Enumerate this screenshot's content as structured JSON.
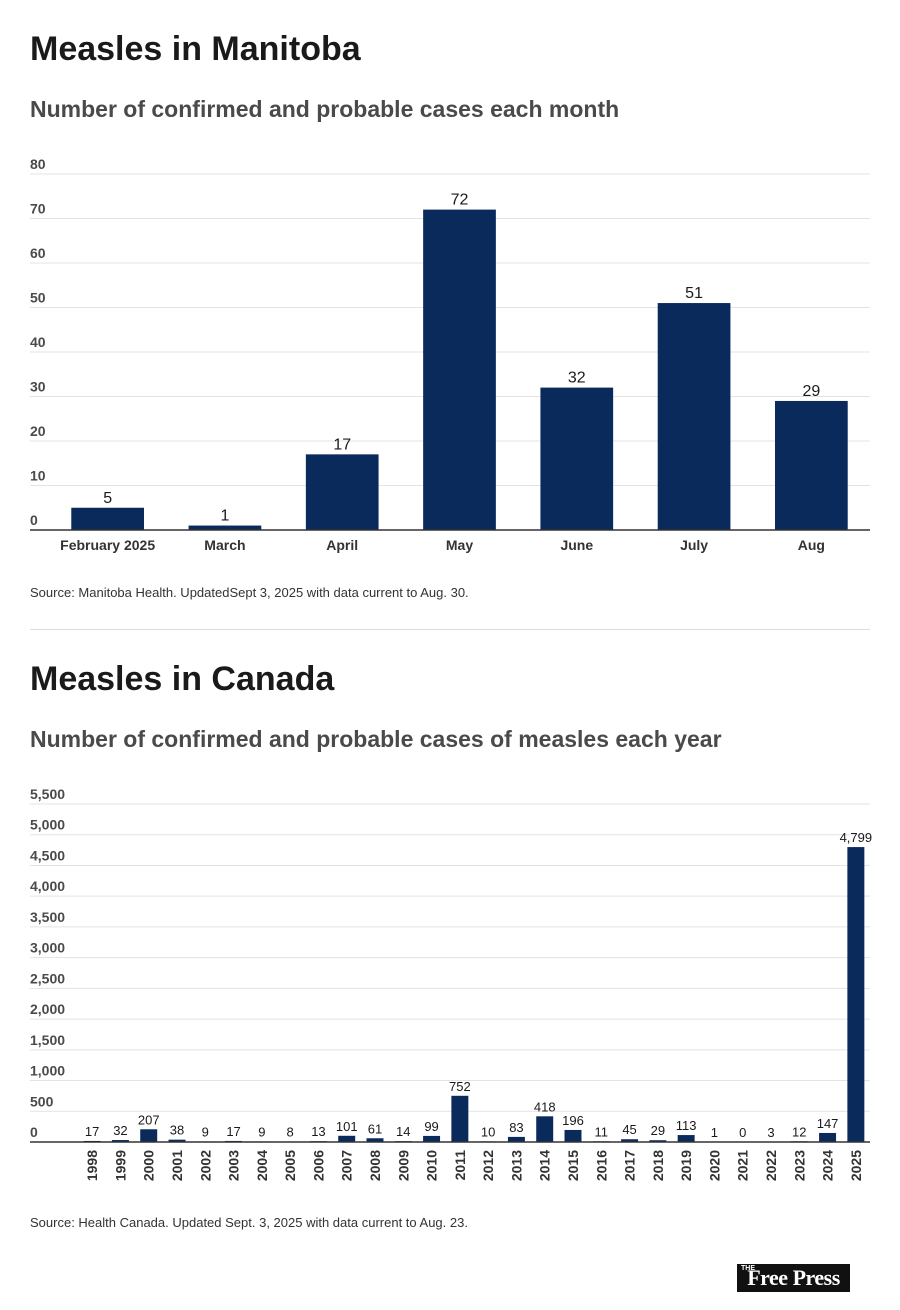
{
  "section1": {
    "title": "Measles in Manitoba",
    "subtitle": "Number of confirmed and probable cases each month",
    "source": "Source: Manitoba Health. UpdatedSept 3, 2025 with data current to Aug. 30."
  },
  "section2": {
    "title": "Measles in Canada",
    "subtitle": "Number of confirmed and probable cases of measles each year",
    "source": "Source: Health Canada. Updated Sept. 3, 2025 with data current to Aug. 23."
  },
  "logo": {
    "small": "THE",
    "text": "Free Press"
  },
  "colors": {
    "bar": "#0b2a5c",
    "grid": "#e3e3e3",
    "axis": "#333333"
  },
  "chart_data": [
    {
      "type": "bar",
      "title": "Measles in Manitoba",
      "subtitle": "Number of confirmed and probable cases each month",
      "categories": [
        "February 2025",
        "March",
        "April",
        "May",
        "June",
        "July",
        "Aug"
      ],
      "values": [
        5,
        1,
        17,
        72,
        32,
        51,
        29
      ],
      "value_labels": [
        "5",
        "1",
        "17",
        "72",
        "32",
        "51",
        "29"
      ],
      "ylim": [
        0,
        80
      ],
      "yticks": [
        0,
        10,
        20,
        30,
        40,
        50,
        60,
        70,
        80
      ],
      "ytick_labels": [
        "0",
        "10",
        "20",
        "30",
        "40",
        "50",
        "60",
        "70",
        "80"
      ],
      "xlabel": "",
      "ylabel": "",
      "grid": true
    },
    {
      "type": "bar",
      "title": "Measles in Canada",
      "subtitle": "Number of confirmed and probable cases of measles each year",
      "categories": [
        "1998",
        "1999",
        "2000",
        "2001",
        "2002",
        "2003",
        "2004",
        "2005",
        "2006",
        "2007",
        "2008",
        "2009",
        "2010",
        "2011",
        "2012",
        "2013",
        "2014",
        "2015",
        "2016",
        "2017",
        "2018",
        "2019",
        "2020",
        "2021",
        "2022",
        "2023",
        "2024",
        "2025"
      ],
      "values": [
        17,
        32,
        207,
        38,
        9,
        17,
        9,
        8,
        13,
        101,
        61,
        14,
        99,
        752,
        10,
        83,
        418,
        196,
        11,
        45,
        29,
        113,
        1,
        0,
        3,
        12,
        147,
        4799
      ],
      "value_labels": [
        "17",
        "32",
        "207",
        "38",
        "9",
        "17",
        "9",
        "8",
        "13",
        "101",
        "61",
        "14",
        "99",
        "752",
        "10",
        "83",
        "418",
        "196",
        "11",
        "45",
        "29",
        "113",
        "1",
        "0",
        "3",
        "12",
        "147",
        "4,799"
      ],
      "ylim": [
        0,
        5500
      ],
      "yticks": [
        0,
        500,
        1000,
        1500,
        2000,
        2500,
        3000,
        3500,
        4000,
        4500,
        5000,
        5500
      ],
      "ytick_labels": [
        "0",
        "500",
        "1,000",
        "1,500",
        "2,000",
        "2,500",
        "3,000",
        "3,500",
        "4,000",
        "4,500",
        "5,000",
        "5,500"
      ],
      "xlabel": "",
      "ylabel": "",
      "grid": true
    }
  ]
}
